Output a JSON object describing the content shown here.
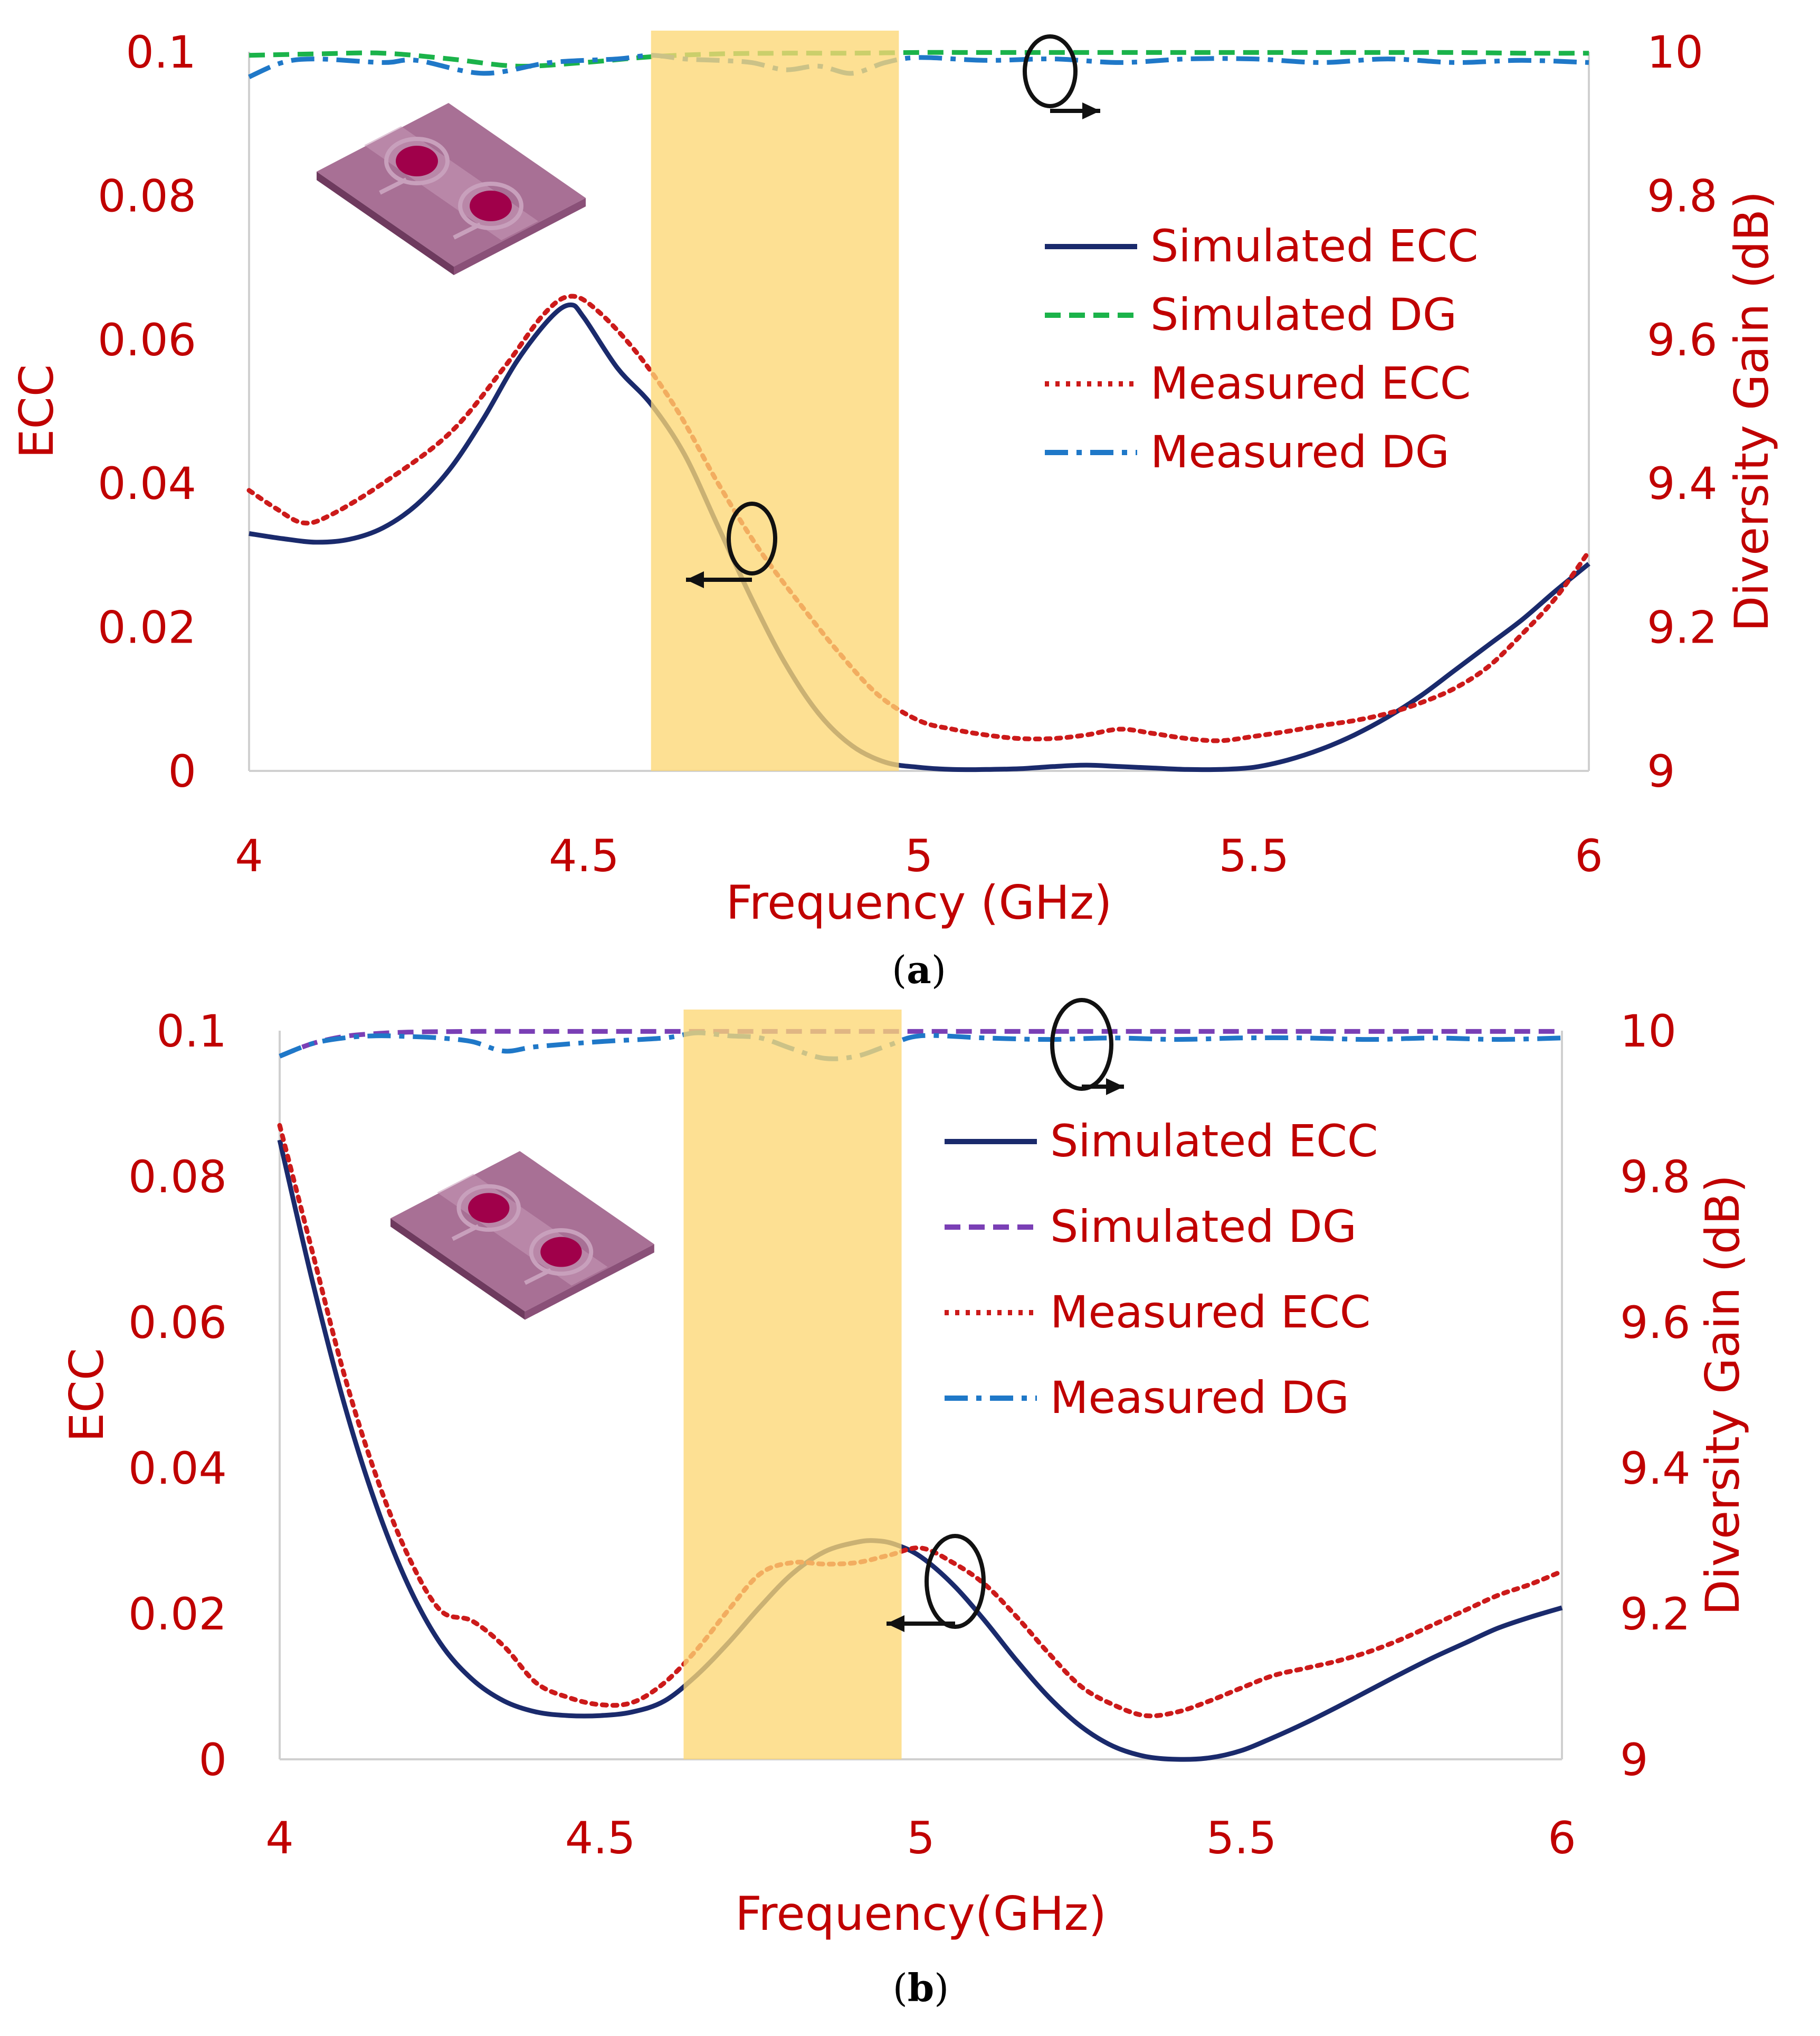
{
  "chart_data": [
    {
      "type": "line",
      "panel_label": "(a)",
      "panel_letter": "a",
      "xlabel": "Frequency (GHz)",
      "ylabel_left": "ECC",
      "ylabel_right": "Diversity Gain (dB)",
      "xlim": [
        4,
        6
      ],
      "ylim_left": [
        0,
        0.1
      ],
      "ylim_right": [
        9,
        10
      ],
      "x_ticks": [
        "4",
        "4.5",
        "5",
        "5.5",
        "6"
      ],
      "y_ticks_left": [
        "0",
        "0.02",
        "0.04",
        "0.06",
        "0.08",
        "0.1"
      ],
      "y_ticks_right": [
        "9",
        "9.2",
        "9.4",
        "9.6",
        "9.8",
        "10"
      ],
      "highlight_band": [
        4.6,
        4.97
      ],
      "grid": false,
      "legend_position": "right-center",
      "series": [
        {
          "name": "Simulated ECC",
          "axis": "left",
          "color": "#1a2a6c",
          "style": "solid",
          "x": [
            4.0,
            4.05,
            4.1,
            4.15,
            4.2,
            4.25,
            4.3,
            4.35,
            4.4,
            4.45,
            4.48,
            4.5,
            4.55,
            4.6,
            4.65,
            4.7,
            4.75,
            4.8,
            4.85,
            4.9,
            4.95,
            5.0,
            5.05,
            5.1,
            5.15,
            5.2,
            5.25,
            5.3,
            5.35,
            5.4,
            5.45,
            5.5,
            5.55,
            5.6,
            5.65,
            5.7,
            5.75,
            5.8,
            5.85,
            5.9,
            5.95,
            6.0
          ],
          "y": [
            0.033,
            0.0323,
            0.0318,
            0.0322,
            0.0338,
            0.037,
            0.042,
            0.049,
            0.057,
            0.063,
            0.0648,
            0.063,
            0.056,
            0.051,
            0.044,
            0.034,
            0.024,
            0.015,
            0.008,
            0.0035,
            0.0012,
            0.0005,
            0.0002,
            0.0002,
            0.0003,
            0.0006,
            0.0008,
            0.0006,
            0.0004,
            0.0002,
            0.0002,
            0.0005,
            0.0015,
            0.003,
            0.005,
            0.0075,
            0.0105,
            0.014,
            0.0175,
            0.021,
            0.025,
            0.0288
          ]
        },
        {
          "name": "Simulated DG",
          "axis": "right",
          "color": "#1bb34a",
          "style": "dashed",
          "x": [
            4.0,
            4.1,
            4.2,
            4.3,
            4.4,
            4.5,
            4.6,
            4.7,
            4.8,
            4.9,
            5.0,
            5.1,
            5.2,
            5.3,
            5.4,
            5.5,
            5.6,
            5.7,
            5.8,
            5.9,
            6.0
          ],
          "y": [
            9.995,
            9.997,
            9.998,
            9.99,
            9.98,
            9.985,
            9.993,
            9.997,
            9.998,
            9.998,
            9.999,
            9.999,
            9.999,
            9.999,
            9.999,
            9.999,
            9.999,
            9.999,
            9.999,
            9.998,
            9.998
          ]
        },
        {
          "name": "Measured ECC",
          "axis": "left",
          "color": "#cc1a1a",
          "style": "dotted",
          "x": [
            4.0,
            4.04,
            4.08,
            4.12,
            4.2,
            4.3,
            4.38,
            4.44,
            4.48,
            4.52,
            4.58,
            4.64,
            4.7,
            4.76,
            4.82,
            4.88,
            4.94,
            5.0,
            5.05,
            5.1,
            5.15,
            5.2,
            5.25,
            5.3,
            5.35,
            5.4,
            5.45,
            5.5,
            5.55,
            5.6,
            5.65,
            5.7,
            5.75,
            5.8,
            5.85,
            5.9,
            5.95,
            6.0
          ],
          "y": [
            0.039,
            0.0365,
            0.0345,
            0.0355,
            0.04,
            0.047,
            0.056,
            0.0635,
            0.066,
            0.064,
            0.058,
            0.05,
            0.04,
            0.031,
            0.0235,
            0.0165,
            0.0105,
            0.007,
            0.0058,
            0.005,
            0.0045,
            0.0045,
            0.005,
            0.0058,
            0.0052,
            0.0045,
            0.0042,
            0.0048,
            0.0055,
            0.0063,
            0.007,
            0.008,
            0.0095,
            0.0115,
            0.0145,
            0.019,
            0.024,
            0.0305
          ]
        },
        {
          "name": "Measured DG",
          "axis": "right",
          "color": "#1f78c8",
          "style": "dashdot",
          "x": [
            4.0,
            4.05,
            4.1,
            4.2,
            4.25,
            4.35,
            4.45,
            4.55,
            4.6,
            4.65,
            4.7,
            4.75,
            4.8,
            4.85,
            4.9,
            4.95,
            5.0,
            5.1,
            5.2,
            5.3,
            5.4,
            5.5,
            5.6,
            5.7,
            5.8,
            5.9,
            6.0
          ],
          "y": [
            9.965,
            9.985,
            9.99,
            9.985,
            9.988,
            9.97,
            9.985,
            9.99,
            9.995,
            9.99,
            9.988,
            9.985,
            9.975,
            9.98,
            9.97,
            9.985,
            9.992,
            9.988,
            9.99,
            9.985,
            9.99,
            9.99,
            9.985,
            9.99,
            9.985,
            9.988,
            9.985
          ]
        }
      ]
    },
    {
      "type": "line",
      "panel_label": "(b)",
      "panel_letter": "b",
      "xlabel": "Frequency(GHz)",
      "ylabel_left": "ECC",
      "ylabel_right": "Diversity Gain (dB)",
      "xlim": [
        4,
        6
      ],
      "ylim_left": [
        0,
        0.1
      ],
      "ylim_right": [
        9,
        10
      ],
      "x_ticks": [
        "4",
        "4.5",
        "5",
        "5.5",
        "6"
      ],
      "y_ticks_left": [
        "0",
        "0.02",
        "0.04",
        "0.06",
        "0.08",
        "0.1"
      ],
      "y_ticks_right": [
        "9",
        "9.2",
        "9.4",
        "9.6",
        "9.8",
        "10"
      ],
      "highlight_band": [
        4.63,
        4.97
      ],
      "grid": false,
      "legend_position": "right-center",
      "series": [
        {
          "name": "Simulated ECC",
          "axis": "left",
          "color": "#1a2a6c",
          "style": "solid",
          "x": [
            4.0,
            4.05,
            4.1,
            4.15,
            4.2,
            4.25,
            4.3,
            4.35,
            4.4,
            4.45,
            4.5,
            4.55,
            4.6,
            4.65,
            4.7,
            4.75,
            4.8,
            4.85,
            4.9,
            4.93,
            4.96,
            5.0,
            5.05,
            5.1,
            5.15,
            5.2,
            5.25,
            5.3,
            5.35,
            5.4,
            5.45,
            5.5,
            5.55,
            5.6,
            5.65,
            5.7,
            5.75,
            5.8,
            5.85,
            5.9,
            5.95,
            6.0
          ],
          "y": [
            0.085,
            0.066,
            0.049,
            0.035,
            0.024,
            0.016,
            0.011,
            0.008,
            0.0065,
            0.006,
            0.006,
            0.0065,
            0.008,
            0.0115,
            0.016,
            0.021,
            0.0255,
            0.0285,
            0.0298,
            0.03,
            0.0295,
            0.0278,
            0.024,
            0.019,
            0.0135,
            0.0085,
            0.0045,
            0.0018,
            0.0004,
            0.0,
            0.0002,
            0.0012,
            0.003,
            0.005,
            0.0072,
            0.0095,
            0.0118,
            0.014,
            0.016,
            0.018,
            0.0195,
            0.0208
          ]
        },
        {
          "name": "Simulated DG",
          "axis": "right",
          "color": "#7a3fb5",
          "style": "dashed",
          "x": [
            4.0,
            4.05,
            4.1,
            4.15,
            4.2,
            4.3,
            4.4,
            4.5,
            4.6,
            4.7,
            4.8,
            4.9,
            5.0,
            5.1,
            5.2,
            5.3,
            5.4,
            5.5,
            5.6,
            5.7,
            5.8,
            5.9,
            6.0
          ],
          "y": [
            9.965,
            9.982,
            9.992,
            9.996,
            9.998,
            9.999,
            9.999,
            9.999,
            9.999,
            9.999,
            9.999,
            9.999,
            9.999,
            9.999,
            9.999,
            9.999,
            9.999,
            9.999,
            9.999,
            9.999,
            9.999,
            9.999,
            9.999
          ]
        },
        {
          "name": "Measured ECC",
          "axis": "left",
          "color": "#cc1a1a",
          "style": "dotted",
          "x": [
            4.0,
            4.05,
            4.1,
            4.15,
            4.2,
            4.25,
            4.3,
            4.35,
            4.4,
            4.45,
            4.5,
            4.55,
            4.6,
            4.65,
            4.7,
            4.75,
            4.8,
            4.85,
            4.9,
            4.95,
            5.0,
            5.05,
            5.1,
            5.15,
            5.2,
            5.25,
            5.3,
            5.35,
            5.4,
            5.45,
            5.5,
            5.55,
            5.6,
            5.65,
            5.7,
            5.75,
            5.8,
            5.85,
            5.9,
            5.95,
            6.0
          ],
          "y": [
            0.087,
            0.07,
            0.053,
            0.039,
            0.028,
            0.0205,
            0.019,
            0.0155,
            0.0105,
            0.0085,
            0.0075,
            0.0078,
            0.0105,
            0.015,
            0.0205,
            0.0255,
            0.027,
            0.0268,
            0.027,
            0.028,
            0.029,
            0.027,
            0.024,
            0.0195,
            0.0145,
            0.01,
            0.0075,
            0.006,
            0.0065,
            0.008,
            0.0098,
            0.0115,
            0.0125,
            0.0135,
            0.0148,
            0.0165,
            0.0185,
            0.0205,
            0.0225,
            0.024,
            0.0258
          ]
        },
        {
          "name": "Measured DG",
          "axis": "right",
          "color": "#1f78c8",
          "style": "dashdot",
          "x": [
            4.0,
            4.05,
            4.1,
            4.15,
            4.2,
            4.25,
            4.3,
            4.35,
            4.4,
            4.5,
            4.6,
            4.65,
            4.7,
            4.75,
            4.8,
            4.85,
            4.9,
            4.95,
            5.0,
            5.1,
            5.2,
            5.3,
            5.4,
            5.5,
            5.6,
            5.7,
            5.8,
            5.9,
            6.0
          ],
          "y": [
            9.965,
            9.982,
            9.99,
            9.993,
            9.992,
            9.99,
            9.985,
            9.972,
            9.978,
            9.985,
            9.99,
            9.997,
            9.993,
            9.99,
            9.975,
            9.962,
            9.965,
            9.98,
            9.993,
            9.99,
            9.988,
            9.99,
            9.988,
            9.99,
            9.99,
            9.988,
            9.99,
            9.988,
            9.99
          ]
        }
      ]
    }
  ],
  "colors": {
    "axis_text": "#c00000",
    "highlight_band": "#fcd774",
    "axis_line": "#d0d0d0",
    "inset_substrate": "#a87095",
    "inset_patch": "#a0004a"
  }
}
